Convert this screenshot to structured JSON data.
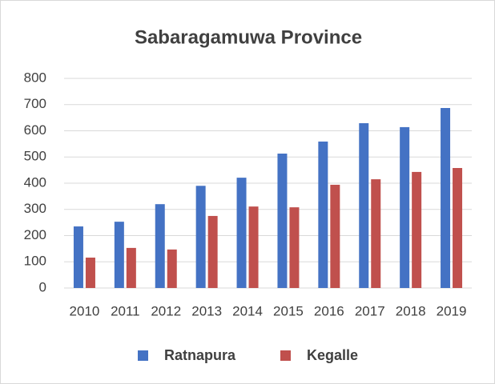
{
  "chart_data": {
    "type": "bar",
    "title": "Sabaragamuwa Province",
    "categories": [
      "2010",
      "2011",
      "2012",
      "2013",
      "2014",
      "2015",
      "2016",
      "2017",
      "2018",
      "2019"
    ],
    "series": [
      {
        "name": "Ratnapura",
        "color": "#4472c4",
        "values": [
          235,
          253,
          320,
          390,
          421,
          513,
          559,
          629,
          614,
          687
        ]
      },
      {
        "name": "Kegalle",
        "color": "#c0504d",
        "values": [
          116,
          153,
          147,
          275,
          311,
          308,
          394,
          415,
          443,
          458
        ]
      }
    ],
    "ylim": [
      0,
      800
    ],
    "yticks": [
      0,
      100,
      200,
      300,
      400,
      500,
      600,
      700,
      800
    ],
    "grid": true,
    "legend": "bottom"
  }
}
